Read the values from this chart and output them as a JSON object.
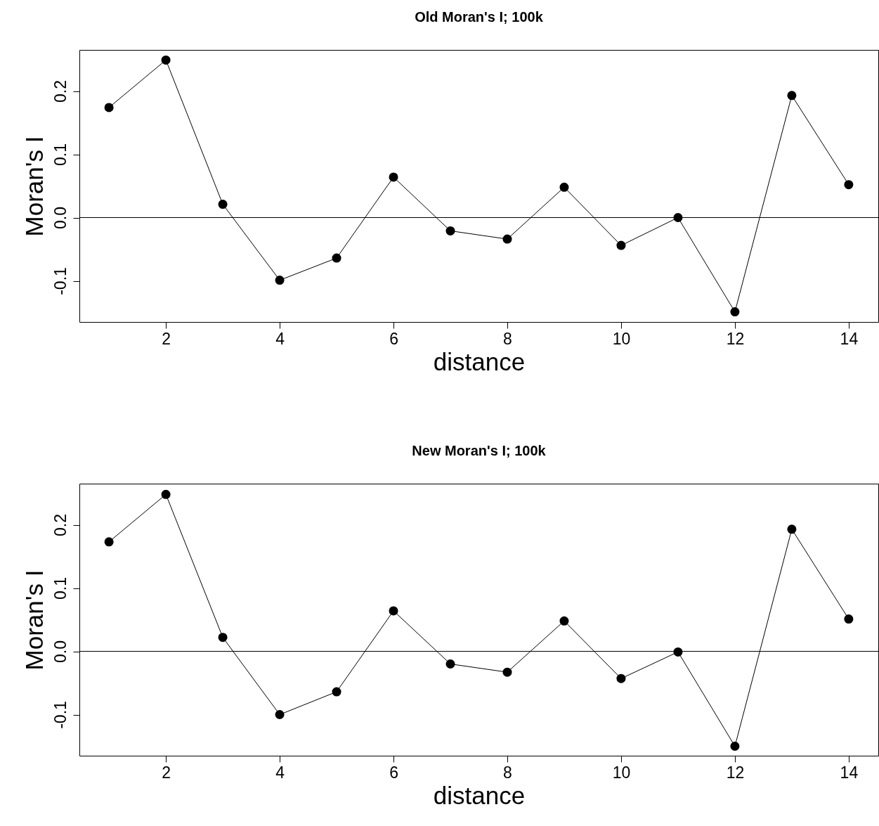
{
  "chart_data": [
    {
      "type": "line",
      "title": "Old Moran's I; 100k",
      "xlabel": "distance",
      "ylabel": "Moran's I",
      "x": [
        1,
        2,
        3,
        4,
        5,
        6,
        7,
        8,
        9,
        10,
        11,
        12,
        13,
        14
      ],
      "series": [
        {
          "color": "#000000",
          "values": [
            0.174,
            0.249,
            0.021,
            -0.099,
            -0.064,
            0.064,
            -0.021,
            -0.034,
            0.048,
            -0.044,
            0.0,
            -0.149,
            0.193,
            0.052
          ]
        }
      ],
      "xlim": [
        0.48,
        14.52
      ],
      "ylim": [
        -0.165,
        0.265
      ],
      "xticks": [
        2,
        4,
        6,
        8,
        10,
        12,
        14
      ],
      "yticks": [
        {
          "value": -0.1,
          "label": "-0.1"
        },
        {
          "value": 0,
          "label": "0.0"
        },
        {
          "value": 0.1,
          "label": "0.1"
        },
        {
          "value": 0.2,
          "label": "0.2"
        }
      ],
      "ref_lines": [
        {
          "axis": "y",
          "value": 0,
          "color": "#000000"
        }
      ],
      "marker": "circle",
      "line_style": "solid",
      "grid": false
    },
    {
      "type": "line",
      "title": "New Moran's I; 100k",
      "xlabel": "distance",
      "ylabel": "Moran's I",
      "x": [
        1,
        2,
        3,
        4,
        5,
        6,
        7,
        8,
        9,
        10,
        11,
        12,
        13,
        14
      ],
      "series": [
        {
          "color": "#000000",
          "values": [
            0.173,
            0.248,
            0.022,
            -0.1,
            -0.064,
            0.064,
            -0.02,
            -0.033,
            0.048,
            -0.043,
            -0.001,
            -0.15,
            0.193,
            0.051
          ]
        }
      ],
      "xlim": [
        0.48,
        14.52
      ],
      "ylim": [
        -0.165,
        0.265
      ],
      "xticks": [
        2,
        4,
        6,
        8,
        10,
        12,
        14
      ],
      "yticks": [
        {
          "value": -0.1,
          "label": "-0.1"
        },
        {
          "value": 0,
          "label": "0.0"
        },
        {
          "value": 0.1,
          "label": "0.1"
        },
        {
          "value": 0.2,
          "label": "0.2"
        }
      ],
      "ref_lines": [
        {
          "axis": "y",
          "value": 0,
          "color": "#000000"
        }
      ],
      "marker": "circle",
      "line_style": "solid",
      "grid": false
    }
  ]
}
